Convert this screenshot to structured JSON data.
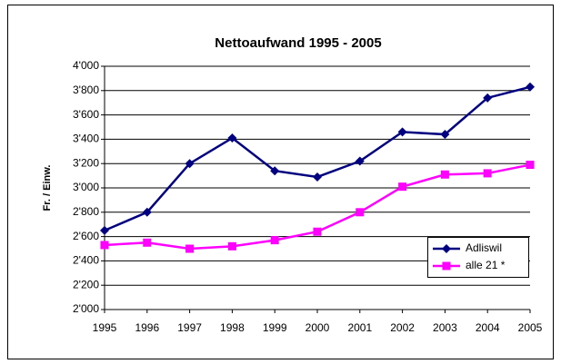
{
  "chart_data": {
    "type": "line",
    "title": "Nettoaufwand 1995 - 2005",
    "y_label": "Fr. / Einw.",
    "categories": [
      "1995",
      "1996",
      "1997",
      "1998",
      "1999",
      "2000",
      "2001",
      "2002",
      "2003",
      "2004",
      "2005"
    ],
    "series": [
      {
        "name": "Adliswil",
        "color": "#000080",
        "marker": "diamond",
        "values": [
          2650,
          2800,
          3200,
          3410,
          3140,
          3090,
          3220,
          3460,
          3440,
          3740,
          3830
        ]
      },
      {
        "name": "alle 21 *",
        "color": "#ff00ff",
        "marker": "square",
        "values": [
          2530,
          2550,
          2500,
          2520,
          2570,
          2640,
          2800,
          3010,
          3110,
          3120,
          3190
        ]
      }
    ],
    "ylim": [
      2000,
      4000
    ],
    "yticks": [
      {
        "value": 2000,
        "label": "2'000"
      },
      {
        "value": 2200,
        "label": "2'200"
      },
      {
        "value": 2400,
        "label": "2'400"
      },
      {
        "value": 2600,
        "label": "2'600"
      },
      {
        "value": 2800,
        "label": "2'800"
      },
      {
        "value": 3000,
        "label": "3'000"
      },
      {
        "value": 3200,
        "label": "3'200"
      },
      {
        "value": 3400,
        "label": "3'400"
      },
      {
        "value": 3600,
        "label": "3'600"
      },
      {
        "value": 3800,
        "label": "3'800"
      },
      {
        "value": 4000,
        "label": "4'000"
      }
    ],
    "grid": true,
    "legend": "right"
  }
}
